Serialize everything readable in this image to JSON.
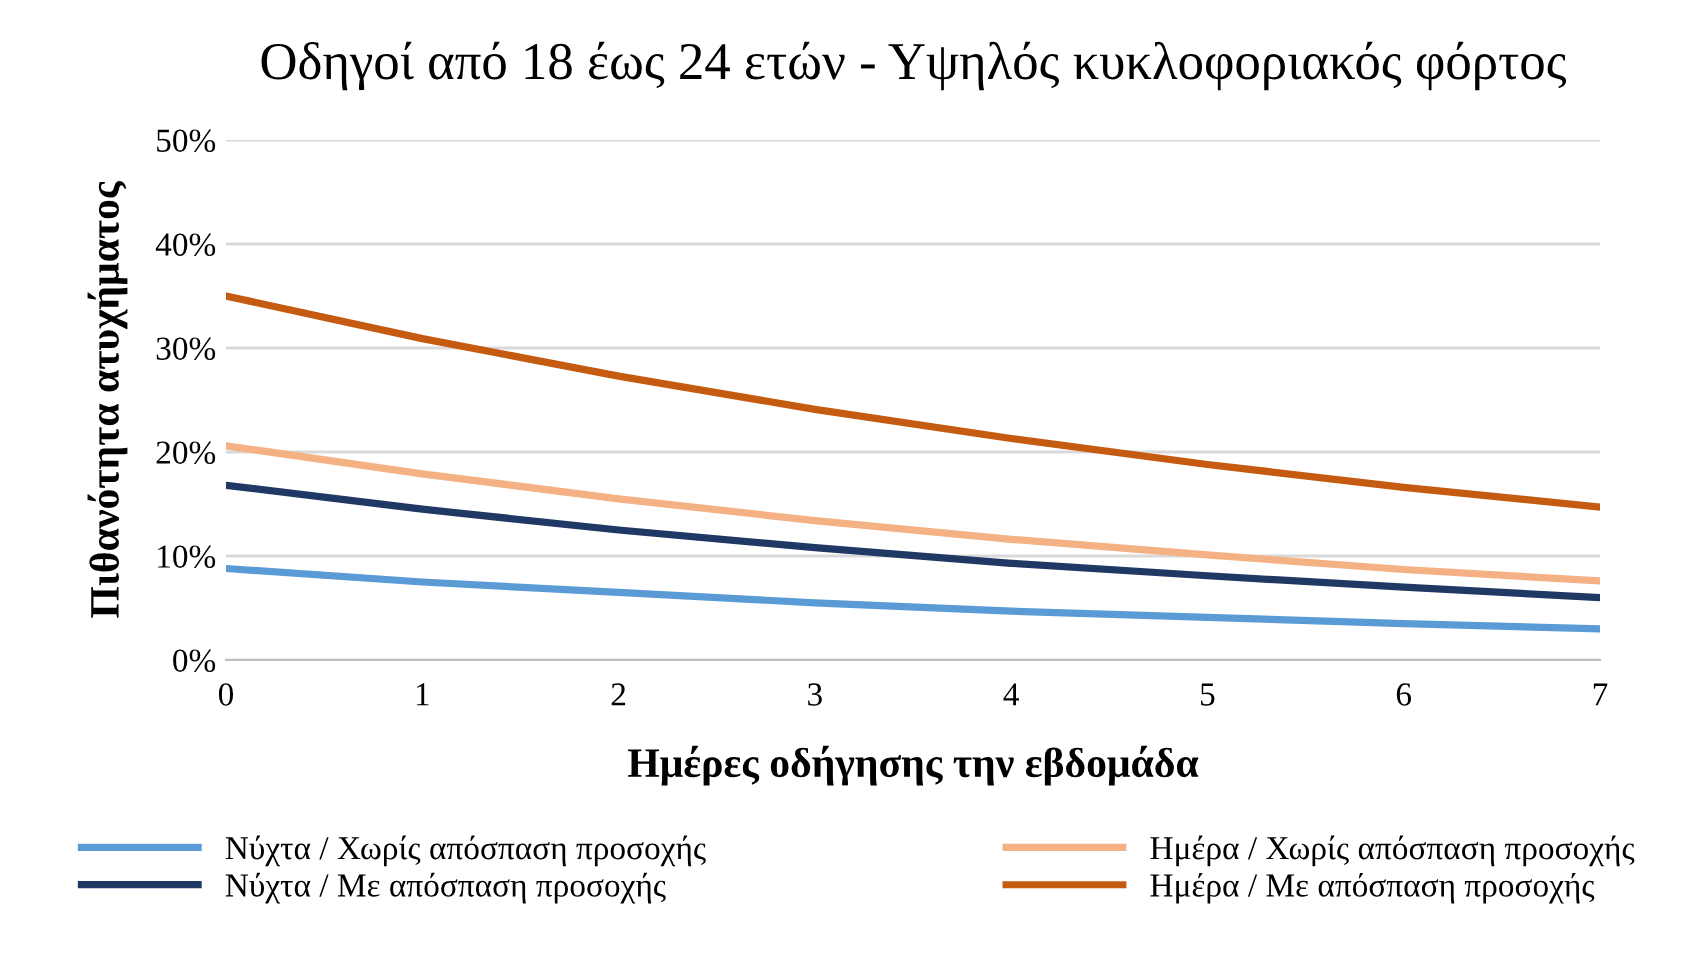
{
  "chart_data": {
    "type": "line",
    "title": "Οδηγοί από 18 έως 24 ετών - Υψηλός κυκλοφοριακός φόρτος",
    "xlabel": "Ημέρες οδήγησης την εβδομάδα",
    "ylabel": "Πιθανότητα ατυχήματος",
    "x": [
      0,
      1,
      2,
      3,
      4,
      5,
      6,
      7
    ],
    "series": [
      {
        "name": "Νύχτα / Χωρίς απόσπαση προσοχής",
        "color": "#5b9bd5",
        "values": [
          8.8,
          7.5,
          6.5,
          5.5,
          4.7,
          4.1,
          3.5,
          3.0
        ]
      },
      {
        "name": "Ημέρα / Χωρίς απόσπαση προσοχής",
        "color": "#f4b183",
        "values": [
          20.6,
          17.9,
          15.5,
          13.4,
          11.6,
          10.1,
          8.7,
          7.6
        ]
      },
      {
        "name": "Νύχτα / Με απόσπαση προσοχής",
        "color": "#203864",
        "values": [
          16.8,
          14.5,
          12.5,
          10.8,
          9.3,
          8.1,
          7.0,
          6.0
        ]
      },
      {
        "name": "Ημέρα / Με απόσπαση προσοχής",
        "color": "#c55a11",
        "values": [
          35,
          30.9,
          27.3,
          24.1,
          21.3,
          18.8,
          16.6,
          14.7
        ]
      }
    ],
    "xlim": [
      0,
      7
    ],
    "xticks": [
      0,
      1,
      2,
      3,
      4,
      5,
      6,
      7
    ],
    "ylim": [
      0,
      50
    ],
    "yticks": [
      {
        "value": 0,
        "label": "0%"
      },
      {
        "value": 10,
        "label": "10%"
      },
      {
        "value": 20,
        "label": "20%"
      },
      {
        "value": 30,
        "label": "30%"
      },
      {
        "value": 40,
        "label": "40%"
      },
      {
        "value": 50,
        "label": "50%"
      }
    ],
    "grid": "y",
    "legend": "bottom",
    "marker": "none",
    "line_style": "solid"
  }
}
